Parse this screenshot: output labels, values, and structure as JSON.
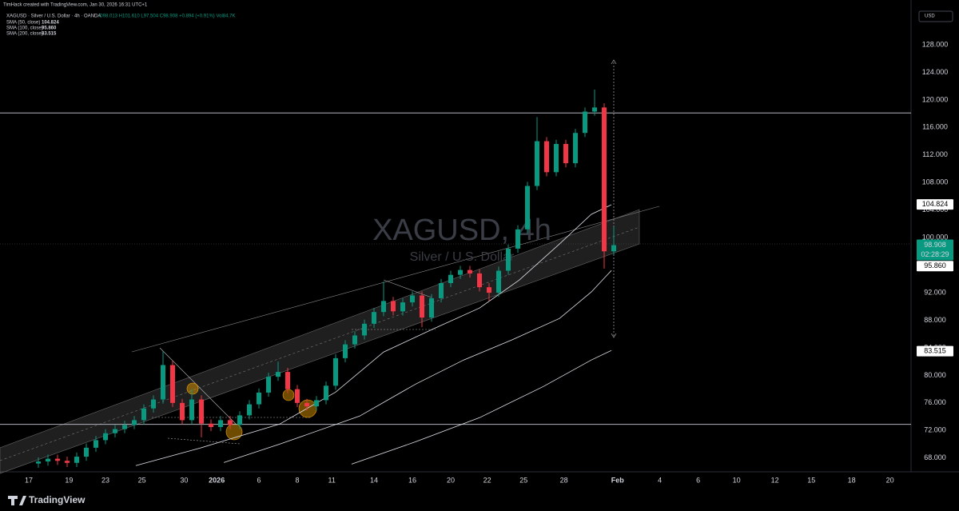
{
  "chart_data": {
    "type": "candlestick",
    "header": "TimHack created with TradingView.com, Jan 30, 2026 16:31 UTC+1",
    "symbol_line": "XAGUSD · Silver / U.S. Dollar · 4h · OANDA",
    "ohlc_line": "O98.013 H101.610 L97.504 C98.908 +0.894 (+0.91%) Vol84.7K",
    "currency": "USD",
    "watermark_title": "XAGUSD, 4h",
    "watermark_subtitle": "Silver / U.S. Dollar",
    "countdown": "02:28:29",
    "brand": "TradingView",
    "last_price": 98.908,
    "up_color": "#089981",
    "down_color": "#f23645",
    "ylim": [
      66,
      134.5
    ],
    "yticks": [
      {
        "value": 68,
        "label": "68.000"
      },
      {
        "value": 72,
        "label": "72.000"
      },
      {
        "value": 76,
        "label": "76.000"
      },
      {
        "value": 80,
        "label": "80.000"
      },
      {
        "value": 84,
        "label": "84.000"
      },
      {
        "value": 88,
        "label": "88.000"
      },
      {
        "value": 92,
        "label": "92.000"
      },
      {
        "value": 96,
        "label": "96.000"
      },
      {
        "value": 100,
        "label": "100.000"
      },
      {
        "value": 104,
        "label": "104.000"
      },
      {
        "value": 108,
        "label": "108.000"
      },
      {
        "value": 112,
        "label": "112.000"
      },
      {
        "value": 116,
        "label": "116.000"
      },
      {
        "value": 120,
        "label": "120.000"
      },
      {
        "value": 124,
        "label": "124.000"
      },
      {
        "value": 128,
        "label": "128.000"
      }
    ],
    "xlim": [
      0,
      47.5
    ],
    "xticks": [
      {
        "value": 1.5,
        "label": "17"
      },
      {
        "value": 3.6,
        "label": "19"
      },
      {
        "value": 5.5,
        "label": "23"
      },
      {
        "value": 7.4,
        "label": "25"
      },
      {
        "value": 9.6,
        "label": "30"
      },
      {
        "value": 11.3,
        "label": "2026"
      },
      {
        "value": 13.5,
        "label": "6"
      },
      {
        "value": 15.5,
        "label": "8"
      },
      {
        "value": 17.3,
        "label": "11"
      },
      {
        "value": 19.5,
        "label": "14"
      },
      {
        "value": 21.5,
        "label": "16"
      },
      {
        "value": 23.5,
        "label": "20"
      },
      {
        "value": 25.4,
        "label": "22"
      },
      {
        "value": 27.3,
        "label": "25"
      },
      {
        "value": 29.4,
        "label": "28"
      },
      {
        "value": 32.2,
        "label": "Feb"
      },
      {
        "value": 34.4,
        "label": "4"
      },
      {
        "value": 36.4,
        "label": "6"
      },
      {
        "value": 38.4,
        "label": "10"
      },
      {
        "value": 40.4,
        "label": "12"
      },
      {
        "value": 42.3,
        "label": "15"
      },
      {
        "value": 44.4,
        "label": "18"
      },
      {
        "value": 46.4,
        "label": "20"
      }
    ],
    "candles": {
      "x": [
        2,
        2.5,
        3,
        3.5,
        4,
        4.5,
        5,
        5.5,
        6,
        6.5,
        7,
        7.5,
        8,
        8.5,
        9,
        9.5,
        10,
        10.5,
        11,
        11.5,
        12,
        12.5,
        13,
        13.5,
        14,
        14.5,
        15,
        15.5,
        16,
        16.5,
        17,
        17.5,
        18,
        18.5,
        19,
        19.5,
        20,
        20.5,
        21,
        21.5,
        22,
        22.5,
        23,
        23.5,
        24,
        24.5,
        25,
        25.5,
        26,
        26.5,
        27,
        27.5,
        28,
        28.5,
        29,
        29.5,
        30,
        30.5,
        31,
        31.5,
        32
      ],
      "open": [
        67.2,
        67.5,
        67.9,
        67.6,
        67.3,
        68.2,
        69.5,
        70.6,
        71.6,
        72.2,
        72.8,
        73.5,
        75.2,
        76.5,
        81.5,
        76,
        73.5,
        76.5,
        73,
        72.5,
        73.5,
        72.8,
        74.2,
        75.8,
        77.5,
        79.8,
        80.5,
        78,
        76,
        75.5,
        76.4,
        78.5,
        82.5,
        84.5,
        85.8,
        87.5,
        89.2,
        90.8,
        89.3,
        90.6,
        91.6,
        88.4,
        91.2,
        93.4,
        94.6,
        95.3,
        94.8,
        92.8,
        92,
        95.2,
        98.4,
        101.2,
        107.5,
        114,
        109.5,
        113.6,
        110.8,
        115.2,
        118.3,
        118.9,
        98.013
      ],
      "high": [
        68.1,
        68.5,
        68.5,
        68.2,
        68.8,
        70.1,
        71.2,
        72.2,
        72.8,
        73.4,
        74.1,
        75.8,
        77.1,
        83.5,
        82.1,
        76.6,
        78,
        77.1,
        73.6,
        74.1,
        74.1,
        74.8,
        76.4,
        78.1,
        80.4,
        82,
        81.1,
        78.6,
        76.6,
        77,
        79.1,
        83.1,
        85.1,
        86.4,
        88.1,
        89.8,
        93.6,
        91.4,
        91.2,
        92.2,
        92.2,
        91.8,
        94,
        95.2,
        95.9,
        95.9,
        95.4,
        93.4,
        95.8,
        99,
        101.8,
        108.1,
        117.5,
        114.6,
        114.2,
        114.2,
        115.8,
        118.9,
        121.5,
        119.5,
        101.61
      ],
      "low": [
        66.6,
        66.9,
        67,
        66.7,
        66.7,
        67.6,
        68.9,
        70,
        71,
        71.6,
        72.2,
        72.9,
        74.6,
        75.9,
        75.4,
        72.9,
        72.9,
        71,
        71.9,
        71.9,
        72.2,
        72.2,
        73.6,
        75.2,
        76.9,
        79.2,
        77.4,
        75.4,
        74.9,
        74.9,
        75.8,
        77.9,
        81.9,
        83.9,
        85.2,
        86.9,
        88.6,
        88.7,
        88.7,
        90,
        87,
        87.8,
        90.6,
        92.8,
        94,
        94.2,
        92.2,
        90.8,
        91.4,
        94.6,
        97.8,
        100.6,
        106.9,
        108.9,
        108.9,
        110.2,
        110.2,
        114.6,
        117.7,
        95.5,
        97.504
      ],
      "close": [
        67.5,
        67.9,
        67.6,
        67.3,
        68.2,
        69.5,
        70.6,
        71.6,
        72.2,
        72.8,
        73.5,
        75.2,
        76.5,
        81.5,
        76,
        73.5,
        76.5,
        73,
        72.5,
        73.5,
        72.8,
        74.2,
        75.8,
        77.5,
        79.8,
        80.5,
        78,
        76,
        75.5,
        76.4,
        78.5,
        82.5,
        84.5,
        85.8,
        87.5,
        89.2,
        90.8,
        89.3,
        90.6,
        91.6,
        88.4,
        91.2,
        93.4,
        94.6,
        95.3,
        94.8,
        92.8,
        92,
        95.2,
        98.4,
        101.2,
        107.5,
        114,
        109.5,
        113.6,
        110.8,
        115.2,
        118.3,
        118.9,
        98.013,
        98.908
      ]
    },
    "sma": [
      {
        "name": "SMA (50, close)",
        "last": 104.824,
        "color": "#e0e3eb",
        "x": [
          7.08,
          10.42,
          14.58,
          17.5,
          20,
          22.5,
          25,
          27.08,
          29.17,
          30.83,
          31.88
        ],
        "values": [
          66.89,
          69.44,
          72.93,
          77.58,
          83.39,
          86.64,
          89.78,
          93.85,
          99.08,
          103.38,
          104.78
        ]
      },
      {
        "name": "SMA (100, close)",
        "last": {
          "value": 95.86,
          "label": "95.860"
        },
        "color": "#e0e3eb",
        "x": [
          11.67,
          14.58,
          18.75,
          21.67,
          24.17,
          26.67,
          29.17,
          30.83,
          31.88
        ],
        "values": [
          67.35,
          70.02,
          74.09,
          78.74,
          82.23,
          85.13,
          88.27,
          92.11,
          95.24
        ]
      },
      {
        "name": "SMA (200, close)",
        "last": 83.515,
        "color": "#e0e3eb",
        "x": [
          18.33,
          21.67,
          25,
          28.33,
          30.83,
          31.88
        ],
        "values": [
          67.12,
          70.37,
          73.86,
          78.39,
          82.23,
          83.62
        ]
      }
    ],
    "hlines": [
      118.1,
      72.9
    ]
  }
}
